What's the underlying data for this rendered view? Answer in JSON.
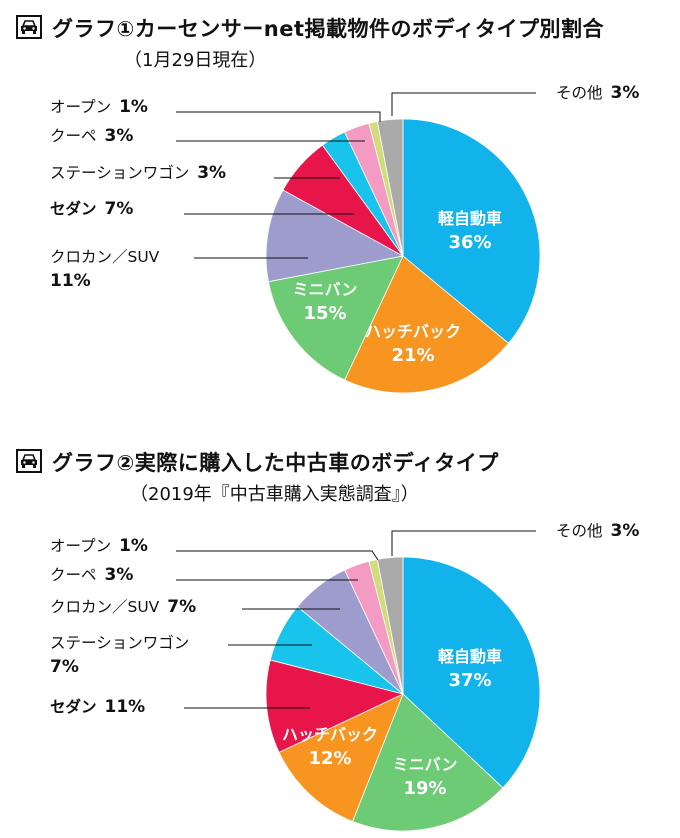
{
  "colors": {
    "kei": "#12b3ea",
    "hatchback": "#f79520",
    "minivan": "#6ccb74",
    "crossover": "#9e9ccd",
    "sedan": "#e8154b",
    "wagon": "#18c3ec",
    "coupe": "#f49bc3",
    "open": "#d2dc7a",
    "other": "#aaaaaa",
    "highlight": "#e8154b"
  },
  "icon": "car-icon",
  "chart_data": [
    {
      "type": "pie",
      "title": "グラフ①カーセンサーnet掲載物件のボディタイプ別割合",
      "subtitle": "（1月29日現在）",
      "slices": [
        {
          "key": "kei",
          "name": "軽自動車",
          "value": 36,
          "pct_label": "36%"
        },
        {
          "key": "hatchback",
          "name": "ハッチバック",
          "value": 21,
          "pct_label": "21%"
        },
        {
          "key": "minivan",
          "name": "ミニバン",
          "value": 15,
          "pct_label": "15%"
        },
        {
          "key": "crossover",
          "name": "クロカン／SUV",
          "value": 11,
          "pct_label": "11%"
        },
        {
          "key": "sedan",
          "name": "セダン",
          "value": 7,
          "pct_label": "7%"
        },
        {
          "key": "wagon",
          "name": "ステーションワゴン",
          "value": 3,
          "pct_label": "3%"
        },
        {
          "key": "coupe",
          "name": "クーペ",
          "value": 3,
          "pct_label": "3%"
        },
        {
          "key": "open",
          "name": "オープン",
          "value": 1,
          "pct_label": "1%"
        },
        {
          "key": "other",
          "name": "その他",
          "value": 3,
          "pct_label": "3%"
        }
      ]
    },
    {
      "type": "pie",
      "title": "グラフ②実際に購入した中古車のボディタイプ",
      "subtitle": "（2019年『中古車購入実態調査』）",
      "slices": [
        {
          "key": "kei",
          "name": "軽自動車",
          "value": 37,
          "pct_label": "37%"
        },
        {
          "key": "minivan",
          "name": "ミニバン",
          "value": 19,
          "pct_label": "19%"
        },
        {
          "key": "hatchback",
          "name": "ハッチバック",
          "value": 12,
          "pct_label": "12%"
        },
        {
          "key": "sedan",
          "name": "セダン",
          "value": 11,
          "pct_label": "11%"
        },
        {
          "key": "wagon",
          "name": "ステーションワゴン",
          "value": 7,
          "pct_label": "7%"
        },
        {
          "key": "crossover",
          "name": "クロカン／SUV",
          "value": 7,
          "pct_label": "7%"
        },
        {
          "key": "coupe",
          "name": "クーペ",
          "value": 3,
          "pct_label": "3%"
        },
        {
          "key": "open",
          "name": "オープン",
          "value": 1,
          "pct_label": "1%"
        },
        {
          "key": "other",
          "name": "その他",
          "value": 3,
          "pct_label": "3%"
        }
      ]
    }
  ]
}
